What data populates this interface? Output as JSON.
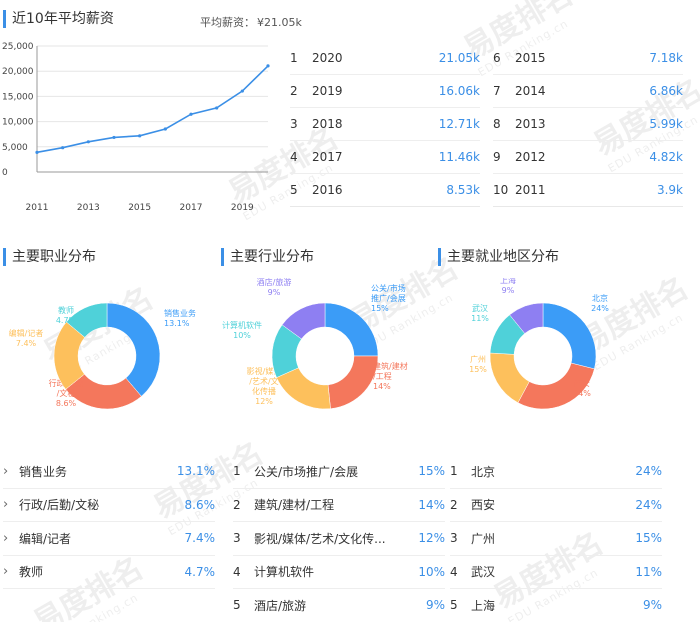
{
  "salary_section": {
    "title": "近10年平均薪资",
    "avg_label": "平均薪资：",
    "avg_value": "¥21.05k"
  },
  "chart_data": [
    {
      "type": "line",
      "x": [
        2011,
        2012,
        2013,
        2014,
        2015,
        2016,
        2017,
        2018,
        2019,
        2020
      ],
      "series": [
        {
          "values": [
            3900,
            4820,
            5990,
            6860,
            7180,
            8530,
            11460,
            12710,
            16060,
            21050
          ]
        }
      ],
      "xticks": [
        2011,
        2013,
        2015,
        2017,
        2019
      ],
      "yticks": [
        0,
        5000,
        10000,
        15000,
        20000,
        25000
      ],
      "ytick_labels": [
        "0",
        "5,000",
        "10,000",
        "15,000",
        "20,000",
        "25,000"
      ],
      "ylim": [
        0,
        25000
      ],
      "grid": true,
      "color": "#3b8fe6"
    },
    {
      "type": "pie",
      "title": "主要职业分布",
      "labels": [
        "销售业务",
        "行政/后勤/文秘",
        "编辑/记者",
        "教师"
      ],
      "values": [
        13.1,
        8.6,
        7.4,
        4.7
      ],
      "value_labels": [
        "13.1%",
        "8.6%",
        "7.4%",
        "4.7%"
      ],
      "colors": [
        "#3b9cf7",
        "#f4775c",
        "#fdc05c",
        "#4fd1d9"
      ]
    },
    {
      "type": "pie",
      "title": "主要行业分布",
      "labels": [
        "公关/市场推广/会展",
        "建筑/建材/工程",
        "影视/媒体/艺术/文化传播",
        "计算机软件",
        "酒店/旅游"
      ],
      "values": [
        15,
        14,
        12,
        10,
        9
      ],
      "value_labels": [
        "15%",
        "14%",
        "12%",
        "10%",
        "9%"
      ],
      "colors": [
        "#3b9cf7",
        "#f4775c",
        "#fdc05c",
        "#4fd1d9",
        "#8e7ff2"
      ]
    },
    {
      "type": "pie",
      "title": "主要就业地区分布",
      "labels": [
        "北京",
        "西安",
        "广州",
        "武汉",
        "上海"
      ],
      "values": [
        24,
        24,
        15,
        11,
        9
      ],
      "value_labels": [
        "24%",
        "24%",
        "15%",
        "11%",
        "9%"
      ],
      "colors": [
        "#3b9cf7",
        "#f4775c",
        "#fdc05c",
        "#4fd1d9",
        "#8e7ff2"
      ]
    }
  ],
  "year_table_left": [
    {
      "rank": "1",
      "year": "2020",
      "value": "21.05k"
    },
    {
      "rank": "2",
      "year": "2019",
      "value": "16.06k"
    },
    {
      "rank": "3",
      "year": "2018",
      "value": "12.71k"
    },
    {
      "rank": "4",
      "year": "2017",
      "value": "11.46k"
    },
    {
      "rank": "5",
      "year": "2016",
      "value": "8.53k"
    }
  ],
  "year_table_right": [
    {
      "rank": "6",
      "year": "2015",
      "value": "7.18k"
    },
    {
      "rank": "7",
      "year": "2014",
      "value": "6.86k"
    },
    {
      "rank": "8",
      "year": "2013",
      "value": "5.99k"
    },
    {
      "rank": "9",
      "year": "2012",
      "value": "4.82k"
    },
    {
      "rank": "10",
      "year": "2011",
      "value": "3.9k"
    }
  ],
  "occupation_list": [
    {
      "name": "销售业务",
      "pct": "13.1%"
    },
    {
      "name": "行政/后勤/文秘",
      "pct": "8.6%"
    },
    {
      "name": "编辑/记者",
      "pct": "7.4%"
    },
    {
      "name": "教师",
      "pct": "4.7%"
    }
  ],
  "industry_list": [
    {
      "rank": "1",
      "name": "公关/市场推广/会展",
      "pct": "15%"
    },
    {
      "rank": "2",
      "name": "建筑/建材/工程",
      "pct": "14%"
    },
    {
      "rank": "3",
      "name": "影视/媒体/艺术/文化传...",
      "pct": "12%"
    },
    {
      "rank": "4",
      "name": "计算机软件",
      "pct": "10%"
    },
    {
      "rank": "5",
      "name": "酒店/旅游",
      "pct": "9%"
    }
  ],
  "region_list": [
    {
      "rank": "1",
      "name": "北京",
      "pct": "24%"
    },
    {
      "rank": "2",
      "name": "西安",
      "pct": "24%"
    },
    {
      "rank": "3",
      "name": "广州",
      "pct": "15%"
    },
    {
      "rank": "4",
      "name": "武汉",
      "pct": "11%"
    },
    {
      "rank": "5",
      "name": "上海",
      "pct": "9%"
    }
  ],
  "watermark": {
    "brand": "易度排名",
    "sub": "EDU Ranking.cn"
  }
}
